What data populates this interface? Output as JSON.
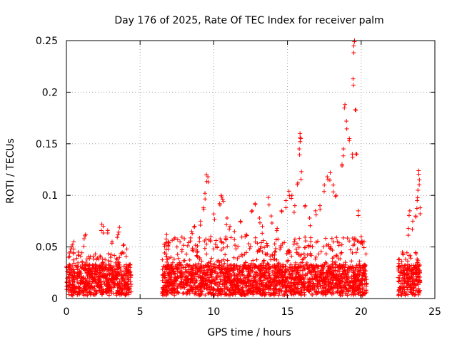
{
  "chart_data": {
    "type": "scatter",
    "title": "Day 176 of 2025, Rate Of TEC Index for receiver palm",
    "xlabel": "GPS time / hours",
    "ylabel": "ROTI / TECUs",
    "xlim": [
      0,
      25
    ],
    "ylim": [
      0,
      0.25
    ],
    "grid": true,
    "marker": "+",
    "color": "#ff0000",
    "x_ticks": [
      {
        "value": 0,
        "label": "0"
      },
      {
        "value": 5,
        "label": "5"
      },
      {
        "value": 10,
        "label": "10"
      },
      {
        "value": 15,
        "label": "15"
      },
      {
        "value": 20,
        "label": "20"
      },
      {
        "value": 25,
        "label": "25"
      }
    ],
    "y_ticks": [
      {
        "value": 0,
        "label": "0"
      },
      {
        "value": 0.05,
        "label": "0.05"
      },
      {
        "value": 0.1,
        "label": "0.1"
      },
      {
        "value": 0.15,
        "label": "0.15"
      },
      {
        "value": 0.2,
        "label": "0.2"
      },
      {
        "value": 0.25,
        "label": "0.25"
      }
    ],
    "data_segments": [
      {
        "x_start": 0.0,
        "x_end": 4.4,
        "typical_max": 0.045
      },
      {
        "x_start": 6.5,
        "x_end": 20.4,
        "typical_max": 0.06
      },
      {
        "x_start": 22.5,
        "x_end": 24.0,
        "typical_max": 0.045
      }
    ],
    "series": [
      {
        "name": "ROTI",
        "points": [
          [
            0.3,
            0.048
          ],
          [
            0.4,
            0.052
          ],
          [
            0.5,
            0.055
          ],
          [
            0.8,
            0.045
          ],
          [
            1.2,
            0.058
          ],
          [
            1.3,
            0.062
          ],
          [
            2.4,
            0.072
          ],
          [
            2.5,
            0.07
          ],
          [
            2.8,
            0.066
          ],
          [
            3.1,
            0.055
          ],
          [
            3.5,
            0.062
          ],
          [
            3.6,
            0.069
          ],
          [
            3.9,
            0.052
          ],
          [
            4.1,
            0.048
          ],
          [
            6.8,
            0.062
          ],
          [
            6.9,
            0.055
          ],
          [
            7.5,
            0.05
          ],
          [
            8.0,
            0.058
          ],
          [
            8.5,
            0.065
          ],
          [
            8.7,
            0.07
          ],
          [
            9.1,
            0.075
          ],
          [
            9.3,
            0.088
          ],
          [
            9.4,
            0.102
          ],
          [
            9.5,
            0.12
          ],
          [
            9.6,
            0.118
          ],
          [
            9.8,
            0.06
          ],
          [
            10.0,
            0.082
          ],
          [
            10.4,
            0.092
          ],
          [
            10.5,
            0.1
          ],
          [
            10.6,
            0.096
          ],
          [
            10.9,
            0.078
          ],
          [
            11.1,
            0.07
          ],
          [
            11.4,
            0.065
          ],
          [
            11.8,
            0.075
          ],
          [
            12.2,
            0.062
          ],
          [
            12.6,
            0.085
          ],
          [
            12.8,
            0.092
          ],
          [
            13.1,
            0.078
          ],
          [
            13.3,
            0.07
          ],
          [
            13.7,
            0.098
          ],
          [
            13.9,
            0.08
          ],
          [
            14.3,
            0.068
          ],
          [
            14.6,
            0.085
          ],
          [
            14.9,
            0.095
          ],
          [
            15.1,
            0.104
          ],
          [
            15.3,
            0.1
          ],
          [
            15.5,
            0.09
          ],
          [
            15.7,
            0.112
          ],
          [
            15.8,
            0.145
          ],
          [
            15.85,
            0.16
          ],
          [
            15.9,
            0.155
          ],
          [
            15.95,
            0.123
          ],
          [
            16.2,
            0.09
          ],
          [
            16.5,
            0.078
          ],
          [
            16.9,
            0.085
          ],
          [
            17.2,
            0.09
          ],
          [
            17.5,
            0.11
          ],
          [
            17.7,
            0.118
          ],
          [
            17.9,
            0.122
          ],
          [
            18.1,
            0.11
          ],
          [
            18.3,
            0.1
          ],
          [
            18.7,
            0.13
          ],
          [
            18.8,
            0.145
          ],
          [
            18.9,
            0.188
          ],
          [
            19.0,
            0.172
          ],
          [
            19.2,
            0.155
          ],
          [
            19.4,
            0.14
          ],
          [
            19.45,
            0.213
          ],
          [
            19.5,
            0.245
          ],
          [
            19.55,
            0.25
          ],
          [
            19.6,
            0.183
          ],
          [
            19.7,
            0.14
          ],
          [
            19.8,
            0.085
          ],
          [
            20.0,
            0.06
          ],
          [
            20.2,
            0.055
          ],
          [
            22.8,
            0.045
          ],
          [
            23.2,
            0.068
          ],
          [
            23.3,
            0.085
          ],
          [
            23.5,
            0.075
          ],
          [
            23.7,
            0.08
          ],
          [
            23.8,
            0.095
          ],
          [
            23.85,
            0.105
          ],
          [
            23.9,
            0.124
          ],
          [
            23.95,
            0.115
          ],
          [
            24.0,
            0.088
          ]
        ]
      }
    ]
  }
}
